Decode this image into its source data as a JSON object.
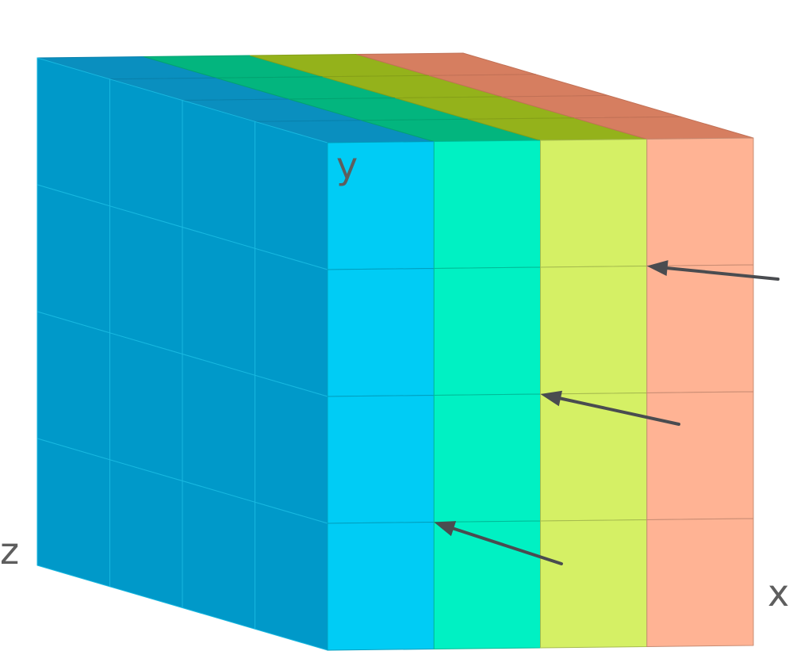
{
  "figure": {
    "grid_size": 4,
    "axis_labels": {
      "x": "x",
      "y": "y",
      "z": "z"
    },
    "colors": {
      "axis_label": "#5e5e5e",
      "arrow": "#4a4c50",
      "cell_edge_front": "#18b8e0",
      "slice_colors": [
        {
          "slice": 1,
          "top": "#0a8fbf",
          "side": "#0099c9",
          "front": "#00ccf5"
        },
        {
          "slice": 2,
          "top": "#03b57e",
          "front": "#00f1c3"
        },
        {
          "slice": 3,
          "top": "#94b21b",
          "front": "#d5f065"
        },
        {
          "slice": 4,
          "top": "#d67e60",
          "front": "#ffb394"
        }
      ]
    },
    "arrow_count": 3
  }
}
